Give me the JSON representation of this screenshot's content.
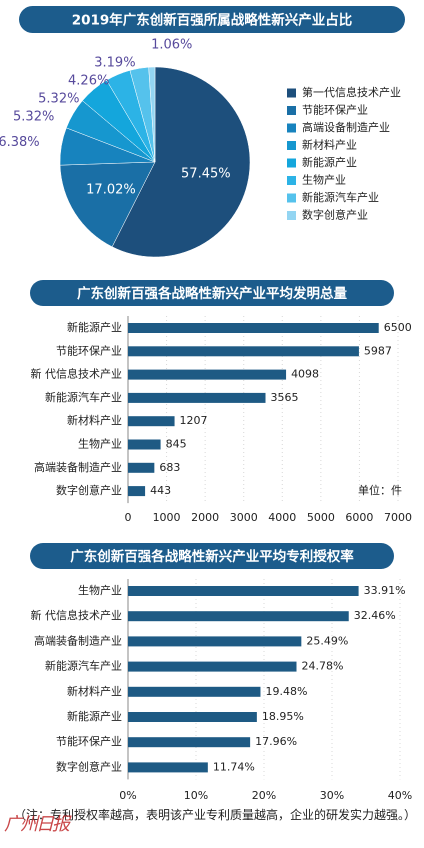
{
  "chart_data": [
    {
      "type": "pie",
      "title": "2019年广东创新百强所属战略性新兴产业占比",
      "categories": [
        "第一代信息技术产业",
        "节能环保产业",
        "高端设备制造产业",
        "新材料产业",
        "新能源产业",
        "生物产业",
        "新能源汽车产业",
        "数字创意产业"
      ],
      "values": [
        57.45,
        17.02,
        6.38,
        5.32,
        5.32,
        4.26,
        3.19,
        1.06
      ],
      "value_labels": [
        "57.45%",
        "17.02%",
        "6.38%",
        "5.32%",
        "5.32%",
        "4.26%",
        "3.19%",
        "1.06%"
      ],
      "colors": [
        "#1d4f7c",
        "#1a6fa6",
        "#1783be",
        "#1697cf",
        "#14a6dc",
        "#2cb3e6",
        "#55c2ec",
        "#93d5f2"
      ],
      "legend": "right"
    },
    {
      "type": "hbar",
      "title": "广东创新百强各战略性新兴产业平均发明总量",
      "categories": [
        "新能源产业",
        "节能环保产业",
        "新 代信息技术产业",
        "新能源汽车产业",
        "新材料产业",
        "生物产业",
        "高端装备制造产业",
        "数字创意产业"
      ],
      "values": [
        6500,
        5987,
        4098,
        3565,
        1207,
        845,
        683,
        443
      ],
      "color": "#1e5a84",
      "xlim": [
        0,
        7000
      ],
      "xticks": [
        0,
        1000,
        2000,
        3000,
        4000,
        5000,
        6000,
        7000
      ],
      "annotation": "单位：件",
      "grid": true
    },
    {
      "type": "hbar",
      "title": "广东创新百强各战略性新兴产业平均专利授权率",
      "categories": [
        "生物产业",
        "新 代信息技术产业",
        "高端装备制造产业",
        "新能源汽车产业",
        "新材料产业",
        "新能源产业",
        "节能环保产业",
        "数字创意产业"
      ],
      "values": [
        33.91,
        32.46,
        25.49,
        24.78,
        19.48,
        18.95,
        17.96,
        11.74
      ],
      "value_labels": [
        "33.91%",
        "32.46%",
        "25.49%",
        "24.78%",
        "19.48%",
        "18.95%",
        "17.96%",
        "11.74%"
      ],
      "color": "#1e5a84",
      "xlim": [
        0,
        40
      ],
      "xticks": [
        {
          "value": 0,
          "label": "0%"
        },
        {
          "value": 10,
          "label": "10%"
        },
        {
          "value": 20,
          "label": "20%"
        },
        {
          "value": 30,
          "label": "30%"
        },
        {
          "value": 40,
          "label": "40%"
        }
      ],
      "grid": true,
      "note": "（注：专利授权率越高，表明该产业专利质量越高，企业的研发实力越强。）"
    }
  ],
  "watermark": "广州日报"
}
